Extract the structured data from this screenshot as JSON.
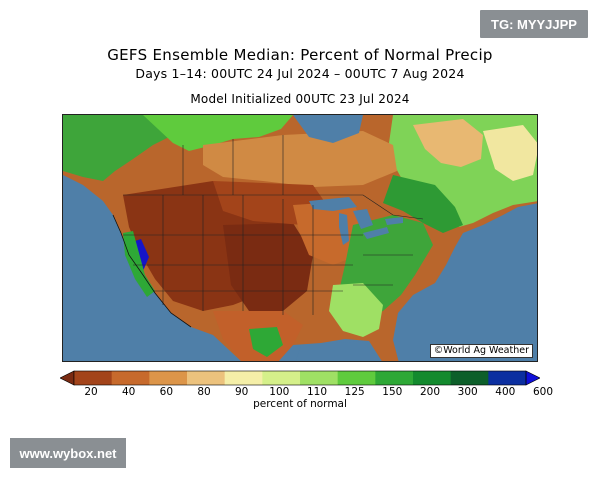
{
  "header": {
    "title": "GEFS Ensemble Median: Percent of Normal Precip",
    "period": "Days 1–14: 00UTC 24 Jul 2024 – 00UTC 7 Aug 2024",
    "initialized": "Model Initialized 00UTC 23 Jul 2024"
  },
  "map": {
    "credit": "©World Ag Weather",
    "ocean_color": "#4f7fa8",
    "region": "North America"
  },
  "colorbar": {
    "label": "percent of normal",
    "ticks": [
      "20",
      "40",
      "60",
      "80",
      "90",
      "100",
      "110",
      "125",
      "150",
      "200",
      "300",
      "400",
      "600"
    ],
    "colors": [
      "#7a2b12",
      "#a3441a",
      "#c76a2c",
      "#dc9549",
      "#ecc27d",
      "#f5efa8",
      "#d5f08a",
      "#9fe064",
      "#5fcb3d",
      "#2ea836",
      "#138a2e",
      "#0d5f2a",
      "#0b2fa0",
      "#1010d8"
    ]
  },
  "watermarks": {
    "top_right": "TG: MYYJJPP",
    "bottom_left": "www.wybox.net"
  }
}
